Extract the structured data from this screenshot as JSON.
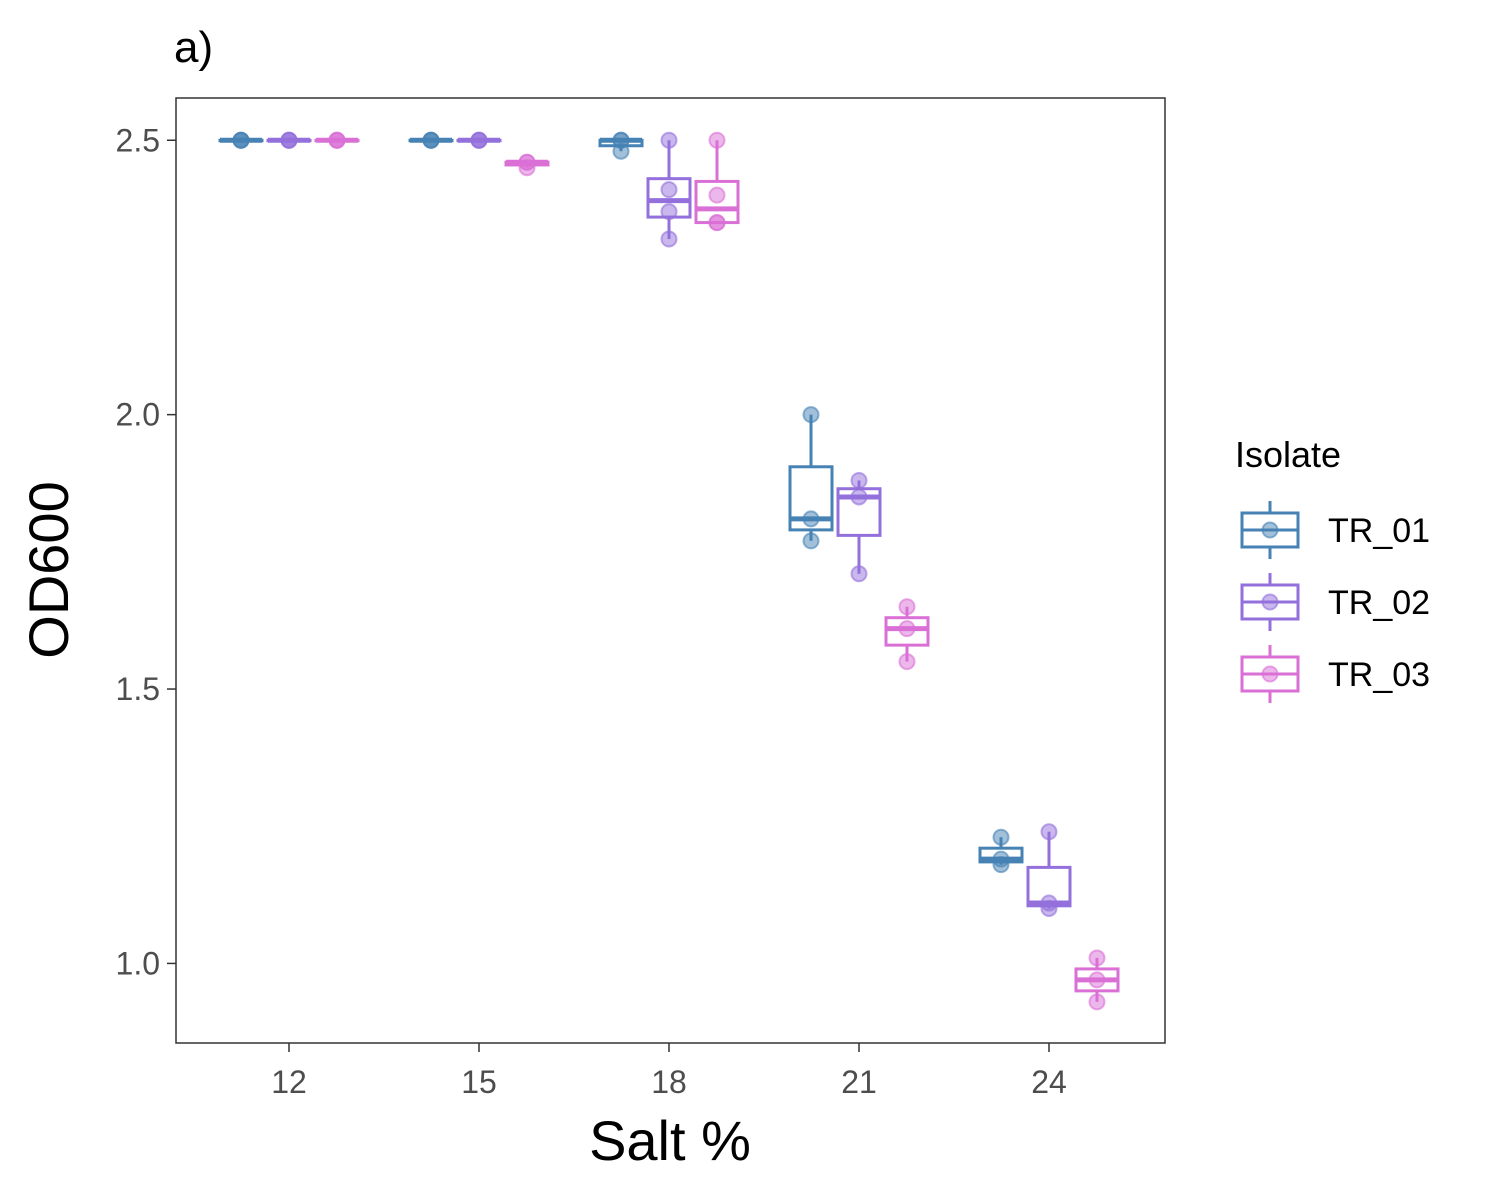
{
  "chart_data": {
    "type": "box",
    "panel_label": "a)",
    "xlabel": "Salt %",
    "ylabel": "OD600",
    "categories": [
      "12",
      "15",
      "18",
      "21",
      "24"
    ],
    "yticks": [
      "1.0",
      "1.5",
      "2.0",
      "2.5"
    ],
    "ytick_values": [
      1.0,
      1.5,
      2.0,
      2.5
    ],
    "ylim": [
      0.855,
      2.577
    ],
    "legend": {
      "title": "Isolate",
      "position": "right"
    },
    "grid": false,
    "series": [
      {
        "name": "TR_01",
        "color": "#4682B4",
        "boxes": [
          {
            "category": "12",
            "min": 2.5,
            "q1": 2.5,
            "median": 2.5,
            "q3": 2.5,
            "max": 2.5,
            "points": [
              2.5,
              2.5,
              2.5
            ]
          },
          {
            "category": "15",
            "min": 2.5,
            "q1": 2.5,
            "median": 2.5,
            "q3": 2.5,
            "max": 2.5,
            "points": [
              2.5,
              2.5,
              2.5
            ]
          },
          {
            "category": "18",
            "min": 2.48,
            "q1": 2.49,
            "median": 2.5,
            "q3": 2.5,
            "max": 2.5,
            "points": [
              2.5,
              2.48,
              2.5
            ]
          },
          {
            "category": "21",
            "min": 1.77,
            "q1": 1.79,
            "median": 1.81,
            "q3": 1.905,
            "max": 2.0,
            "points": [
              2.0,
              1.81,
              1.77
            ]
          },
          {
            "category": "24",
            "min": 1.18,
            "q1": 1.185,
            "median": 1.19,
            "q3": 1.21,
            "max": 1.23,
            "points": [
              1.23,
              1.19,
              1.18
            ]
          }
        ]
      },
      {
        "name": "TR_02",
        "color": "#9370DB",
        "boxes": [
          {
            "category": "12",
            "min": 2.5,
            "q1": 2.5,
            "median": 2.5,
            "q3": 2.5,
            "max": 2.5,
            "points": [
              2.5,
              2.5,
              2.5
            ]
          },
          {
            "category": "15",
            "min": 2.5,
            "q1": 2.5,
            "median": 2.5,
            "q3": 2.5,
            "max": 2.5,
            "points": [
              2.5,
              2.5,
              2.5
            ]
          },
          {
            "category": "18",
            "min": 2.32,
            "q1": 2.36,
            "median": 2.39,
            "q3": 2.43,
            "max": 2.5,
            "points": [
              2.5,
              2.41,
              2.37,
              2.32
            ]
          },
          {
            "category": "21",
            "min": 1.71,
            "q1": 1.78,
            "median": 1.85,
            "q3": 1.865,
            "max": 1.88,
            "points": [
              1.88,
              1.85,
              1.71
            ]
          },
          {
            "category": "24",
            "min": 1.1,
            "q1": 1.105,
            "median": 1.11,
            "q3": 1.175,
            "max": 1.24,
            "points": [
              1.24,
              1.11,
              1.1
            ]
          }
        ]
      },
      {
        "name": "TR_03",
        "color": "#DA70D6",
        "boxes": [
          {
            "category": "12",
            "min": 2.5,
            "q1": 2.5,
            "median": 2.5,
            "q3": 2.5,
            "max": 2.5,
            "points": [
              2.5,
              2.5,
              2.5
            ]
          },
          {
            "category": "15",
            "min": 2.45,
            "q1": 2.455,
            "median": 2.46,
            "q3": 2.46,
            "max": 2.46,
            "points": [
              2.46,
              2.46,
              2.45
            ]
          },
          {
            "category": "18",
            "min": 2.35,
            "q1": 2.35,
            "median": 2.375,
            "q3": 2.425,
            "max": 2.5,
            "points": [
              2.5,
              2.4,
              2.35,
              2.35
            ]
          },
          {
            "category": "21",
            "min": 1.55,
            "q1": 1.58,
            "median": 1.61,
            "q3": 1.63,
            "max": 1.65,
            "points": [
              1.65,
              1.61,
              1.55
            ]
          },
          {
            "category": "24",
            "min": 0.93,
            "q1": 0.95,
            "median": 0.97,
            "q3": 0.99,
            "max": 1.01,
            "points": [
              1.01,
              0.97,
              0.93
            ]
          }
        ]
      }
    ]
  }
}
